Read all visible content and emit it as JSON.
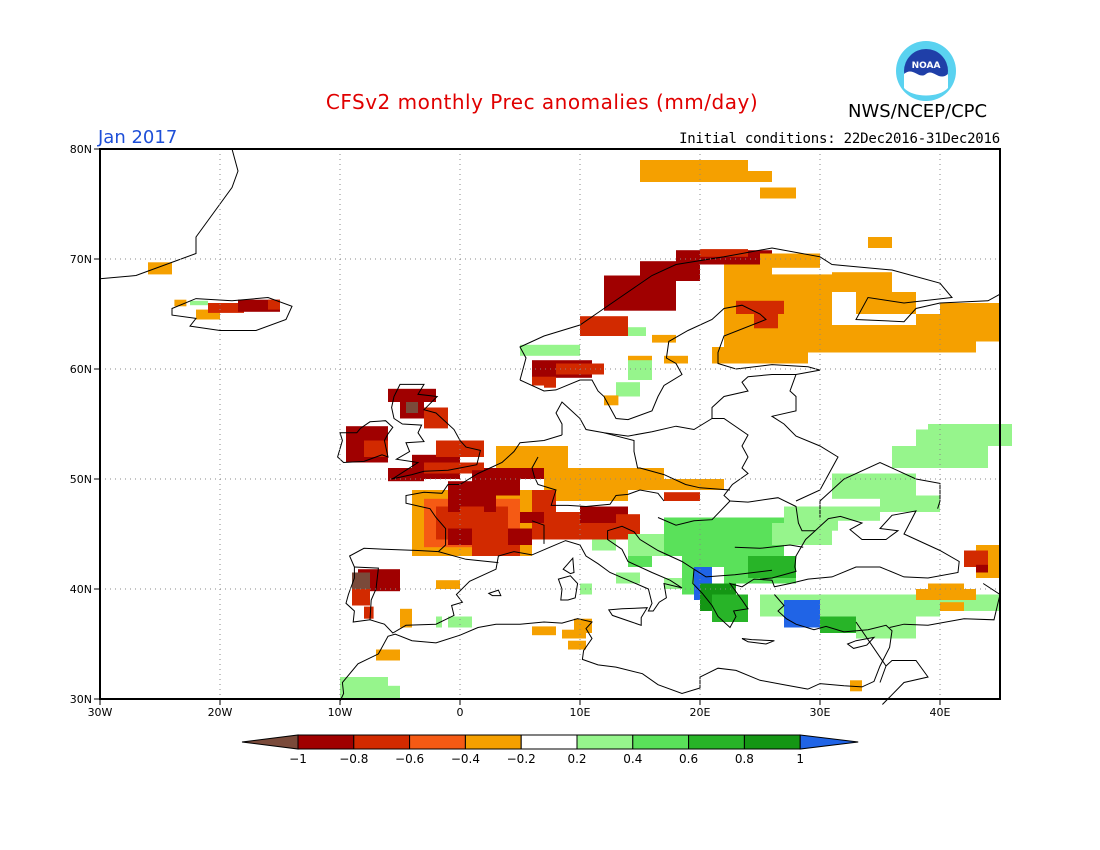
{
  "title": "CFSv2 monthly Prec anomalies (mm/day)",
  "agency": "NWS/NCEP/CPC",
  "logo_text": "NOAA",
  "valid_month": "Jan 2017",
  "initial_conditions": "Initial conditions: 22Dec2016-31Dec2016",
  "axes": {
    "lon_labels": [
      "30W",
      "20W",
      "10W",
      "0",
      "10E",
      "20E",
      "30E",
      "40E"
    ],
    "lat_labels": [
      "30N",
      "40N",
      "50N",
      "60N",
      "70N",
      "80N"
    ]
  },
  "colorbar": {
    "labels": [
      "-1",
      "-0.8",
      "-0.6",
      "-0.4",
      "-0.2",
      "0.2",
      "0.4",
      "0.6",
      "0.8",
      "1"
    ],
    "colors": [
      "#7a4a3a",
      "#a00000",
      "#d22a00",
      "#f55a14",
      "#f5a000",
      "#ffffff",
      "#96f58c",
      "#5ae15a",
      "#28b428",
      "#149614",
      "#2064e6"
    ]
  },
  "colors": {
    "title": "#e00000",
    "month": "#1e4fd8",
    "grid": "#888888",
    "coast": "#000000"
  }
}
